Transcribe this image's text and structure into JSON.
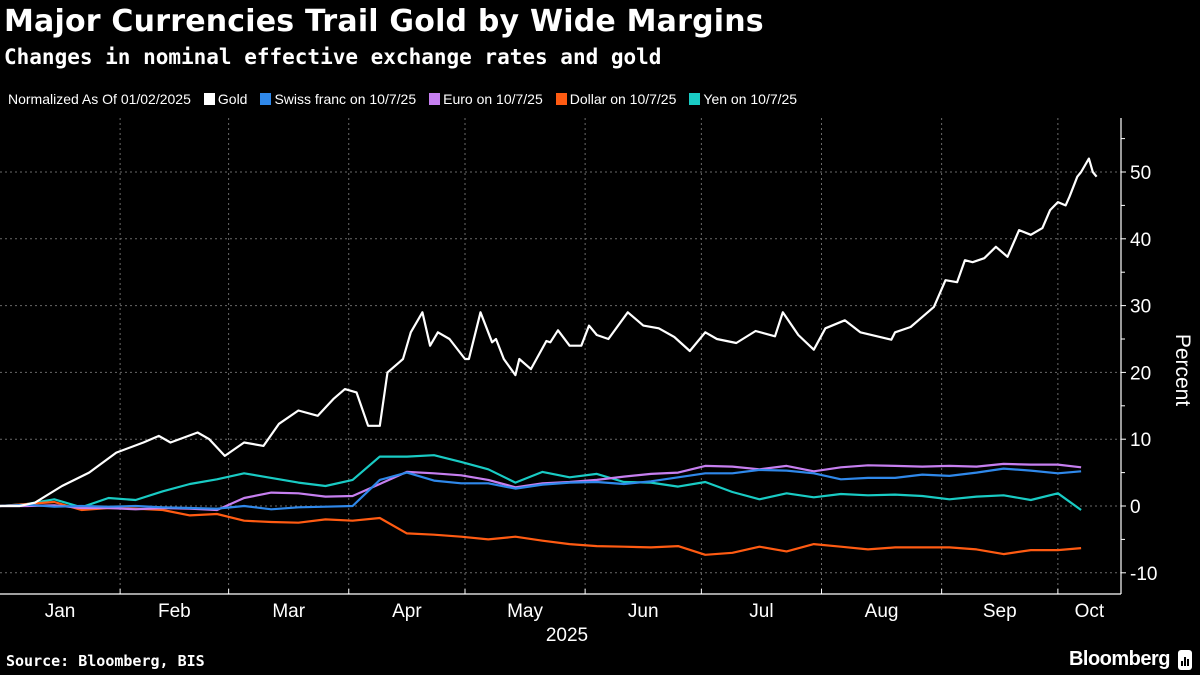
{
  "title": "Major Currencies Trail Gold by Wide Margins",
  "subtitle": "Changes in nominal effective exchange rates and gold",
  "legend": {
    "note": "Normalized As Of 01/02/2025",
    "items": [
      {
        "label": "Gold",
        "color": "#ffffff"
      },
      {
        "label": "Swiss franc on 10/7/25",
        "color": "#2f88ea"
      },
      {
        "label": "Euro on 10/7/25",
        "color": "#c67ff0"
      },
      {
        "label": "Dollar on 10/7/25",
        "color": "#ff5b12"
      },
      {
        "label": "Yen on 10/7/25",
        "color": "#19cbc4"
      }
    ]
  },
  "source": "Source: Bloomberg, BIS",
  "brand": "Bloomberg",
  "chart_data": {
    "type": "line",
    "xlabel": "2025",
    "ylabel": "Percent",
    "ylim": [
      -13,
      58
    ],
    "yticks": [
      -10,
      0,
      10,
      20,
      30,
      40,
      50
    ],
    "xticks": [
      "Jan",
      "Feb",
      "Mar",
      "Apr",
      "May",
      "Jun",
      "Jul",
      "Aug",
      "Sep",
      "Oct"
    ],
    "grid": true,
    "legend_position": "top",
    "x": [
      "2025-01-01",
      "2025-01-08",
      "2025-01-15",
      "2025-01-22",
      "2025-01-29",
      "2025-02-05",
      "2025-02-12",
      "2025-02-19",
      "2025-02-26",
      "2025-03-05",
      "2025-03-12",
      "2025-03-19",
      "2025-03-26",
      "2025-04-02",
      "2025-04-09",
      "2025-04-16",
      "2025-04-23",
      "2025-04-30",
      "2025-05-07",
      "2025-05-14",
      "2025-05-21",
      "2025-05-28",
      "2025-06-04",
      "2025-06-11",
      "2025-06-18",
      "2025-06-25",
      "2025-07-02",
      "2025-07-09",
      "2025-07-16",
      "2025-07-23",
      "2025-07-30",
      "2025-08-06",
      "2025-08-13",
      "2025-08-20",
      "2025-08-27",
      "2025-09-03",
      "2025-09-10",
      "2025-09-17",
      "2025-09-24",
      "2025-10-01",
      "2025-10-07"
    ],
    "series": [
      {
        "name": "Gold",
        "color": "#ffffff",
        "points": [
          [
            "2025-01-01",
            0
          ],
          [
            "2025-01-06",
            0
          ],
          [
            "2025-01-10",
            0.5
          ],
          [
            "2025-01-17",
            3
          ],
          [
            "2025-01-24",
            5
          ],
          [
            "2025-01-31",
            8
          ],
          [
            "2025-02-07",
            9.5
          ],
          [
            "2025-02-11",
            10.5
          ],
          [
            "2025-02-14",
            9.5
          ],
          [
            "2025-02-21",
            11
          ],
          [
            "2025-02-24",
            10
          ],
          [
            "2025-02-28",
            7.5
          ],
          [
            "2025-03-05",
            9.5
          ],
          [
            "2025-03-10",
            9
          ],
          [
            "2025-03-14",
            12.3
          ],
          [
            "2025-03-19",
            14.3
          ],
          [
            "2025-03-24",
            13.5
          ],
          [
            "2025-03-28",
            16
          ],
          [
            "2025-03-31",
            17.5
          ],
          [
            "2025-04-03",
            17
          ],
          [
            "2025-04-06",
            12
          ],
          [
            "2025-04-09",
            12
          ],
          [
            "2025-04-11",
            20
          ],
          [
            "2025-04-14",
            21.5
          ],
          [
            "2025-04-15",
            22
          ],
          [
            "2025-04-17",
            26
          ],
          [
            "2025-04-20",
            29
          ],
          [
            "2025-04-22",
            24
          ],
          [
            "2025-04-24",
            26
          ],
          [
            "2025-04-27",
            25
          ],
          [
            "2025-05-01",
            22
          ],
          [
            "2025-05-02",
            22
          ],
          [
            "2025-05-05",
            29
          ],
          [
            "2025-05-08",
            24.5
          ],
          [
            "2025-05-09",
            25
          ],
          [
            "2025-05-11",
            22
          ],
          [
            "2025-05-14",
            19.6
          ],
          [
            "2025-05-15",
            22
          ],
          [
            "2025-05-18",
            20.5
          ],
          [
            "2025-05-22",
            24.7
          ],
          [
            "2025-05-23",
            24.5
          ],
          [
            "2025-05-25",
            26.3
          ],
          [
            "2025-05-28",
            24
          ],
          [
            "2025-05-31",
            24
          ],
          [
            "2025-06-02",
            27
          ],
          [
            "2025-06-04",
            25.6
          ],
          [
            "2025-06-07",
            25
          ],
          [
            "2025-06-12",
            29
          ],
          [
            "2025-06-16",
            27
          ],
          [
            "2025-06-20",
            26.6
          ],
          [
            "2025-06-24",
            25.3
          ],
          [
            "2025-06-28",
            23.2
          ],
          [
            "2025-07-02",
            26
          ],
          [
            "2025-07-05",
            25
          ],
          [
            "2025-07-10",
            24.4
          ],
          [
            "2025-07-15",
            26.2
          ],
          [
            "2025-07-20",
            25.4
          ],
          [
            "2025-07-22",
            29
          ],
          [
            "2025-07-26",
            25.6
          ],
          [
            "2025-07-30",
            23.4
          ],
          [
            "2025-08-02",
            26.6
          ],
          [
            "2025-08-07",
            27.8
          ],
          [
            "2025-08-11",
            26
          ],
          [
            "2025-08-19",
            24.9
          ],
          [
            "2025-08-20",
            26
          ],
          [
            "2025-08-24",
            26.8
          ],
          [
            "2025-08-26",
            27.8
          ],
          [
            "2025-08-30",
            29.8
          ],
          [
            "2025-09-02",
            33.8
          ],
          [
            "2025-09-05",
            33.5
          ],
          [
            "2025-09-07",
            36.8
          ],
          [
            "2025-09-09",
            36.5
          ],
          [
            "2025-09-12",
            37.1
          ],
          [
            "2025-09-15",
            38.8
          ],
          [
            "2025-09-18",
            37.3
          ],
          [
            "2025-09-21",
            41.3
          ],
          [
            "2025-09-24",
            40.6
          ],
          [
            "2025-09-27",
            41.6
          ],
          [
            "2025-09-29",
            44.3
          ],
          [
            "2025-10-01",
            45.5
          ],
          [
            "2025-10-03",
            45
          ],
          [
            "2025-10-04",
            46.3
          ],
          [
            "2025-10-06",
            49.3
          ],
          [
            "2025-10-07",
            50
          ],
          [
            "2025-10-09",
            52
          ],
          [
            "2025-10-10",
            50
          ],
          [
            "2025-10-11",
            49.3
          ]
        ]
      },
      {
        "name": "Swiss franc on 10/7/25",
        "color": "#2f88ea",
        "values": [
          0,
          0.2,
          -0.1,
          0,
          -0.1,
          0,
          -0.2,
          -0.3,
          -0.4,
          0,
          -0.5,
          -0.2,
          -0.1,
          0,
          3.9,
          5.0,
          3.8,
          3.4,
          3.4,
          2.6,
          3.2,
          3.5,
          3.6,
          3.3,
          3.7,
          4.3,
          4.9,
          4.9,
          5.4,
          5.3,
          4.9,
          4.0,
          4.2,
          4.2,
          4.7,
          4.5,
          5.0,
          5.6,
          5.3,
          4.9,
          5.2
        ]
      },
      {
        "name": "Euro on 10/7/25",
        "color": "#c67ff0",
        "values": [
          0,
          0,
          0.1,
          -0.3,
          -0.3,
          -0.5,
          -0.3,
          -0.4,
          -0.6,
          1.2,
          2.0,
          1.9,
          1.4,
          1.5,
          3.3,
          5.1,
          4.9,
          4.6,
          3.9,
          2.8,
          3.4,
          3.6,
          3.9,
          4.4,
          4.8,
          5.0,
          6.0,
          5.9,
          5.5,
          6.0,
          5.2,
          5.8,
          6.1,
          6.0,
          5.9,
          6.0,
          5.9,
          6.3,
          6.2,
          6.2,
          5.8
        ]
      },
      {
        "name": "Dollar on 10/7/25",
        "color": "#ff5b12",
        "values": [
          0,
          0.3,
          0.6,
          -0.6,
          -0.3,
          -0.4,
          -0.6,
          -1.4,
          -1.2,
          -2.2,
          -2.4,
          -2.5,
          -2.0,
          -2.2,
          -1.8,
          -4.1,
          -4.3,
          -4.6,
          -5.0,
          -4.6,
          -5.2,
          -5.7,
          -6.0,
          -6.1,
          -6.2,
          -6.0,
          -7.3,
          -7.0,
          -6.1,
          -6.8,
          -5.7,
          -6.1,
          -6.5,
          -6.2,
          -6.2,
          -6.2,
          -6.5,
          -7.2,
          -6.6,
          -6.6,
          -6.3
        ]
      },
      {
        "name": "Yen on 10/7/25",
        "color": "#19cbc4",
        "values": [
          0,
          0.3,
          1.0,
          -0.2,
          1.2,
          0.9,
          2.2,
          3.3,
          4.0,
          4.9,
          4.2,
          3.5,
          3.0,
          3.9,
          7.4,
          7.4,
          7.6,
          6.6,
          5.5,
          3.5,
          5.1,
          4.3,
          4.8,
          3.6,
          3.5,
          2.9,
          3.6,
          2.1,
          1.0,
          1.9,
          1.3,
          1.8,
          1.6,
          1.7,
          1.5,
          1.0,
          1.4,
          1.6,
          0.9,
          1.9,
          -0.6
        ]
      }
    ]
  }
}
